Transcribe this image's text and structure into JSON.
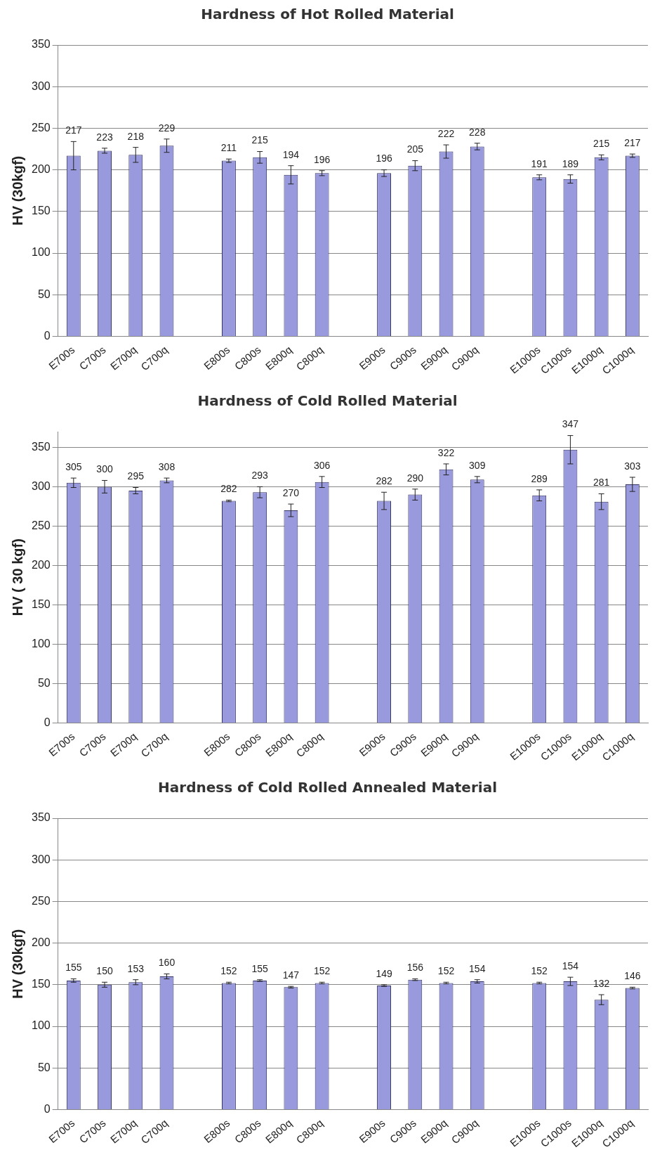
{
  "chart_data": [
    {
      "type": "bar",
      "title": "Hardness of Hot Rolled Material",
      "ylabel": "HV (30kgf)",
      "categories": [
        "E700s",
        "C700s",
        "E700q",
        "C700q",
        null,
        "E800s",
        "C800s",
        "E800q",
        "C800q",
        null,
        "E900s",
        "C900s",
        "E900q",
        "C900q",
        null,
        "E1000s",
        "C1000s",
        "E1000q",
        "C1000q"
      ],
      "series": [
        {
          "color": "#9999dd",
          "values": [
            217,
            223,
            218,
            229,
            null,
            211,
            215,
            194,
            196,
            null,
            196,
            205,
            222,
            228,
            null,
            191,
            189,
            215,
            217
          ],
          "errors": [
            17,
            3,
            9,
            8,
            null,
            2,
            7,
            11,
            3,
            null,
            4,
            6,
            8,
            4,
            null,
            3,
            5,
            3,
            2
          ]
        }
      ],
      "ylim": [
        0,
        350
      ],
      "yticks": [
        0,
        50,
        100,
        150,
        200,
        250,
        300,
        350
      ],
      "grid": "y",
      "data_labels": true
    },
    {
      "type": "bar",
      "title": "Hardness of Cold Rolled Material",
      "ylabel": "HV ( 30 kgf)",
      "categories": [
        "E700s",
        "C700s",
        "E700q",
        "C700q",
        null,
        "E800s",
        "C800s",
        "E800q",
        "C800q",
        null,
        "E900s",
        "C900s",
        "E900q",
        "C900q",
        null,
        "E1000s",
        "C1000s",
        "E1000q",
        "C1000q"
      ],
      "series": [
        {
          "color": "#9999dd",
          "values": [
            305,
            300,
            295,
            308,
            null,
            282,
            293,
            270,
            306,
            null,
            282,
            290,
            322,
            309,
            null,
            289,
            347,
            281,
            303
          ],
          "errors": [
            6,
            8,
            4,
            3,
            null,
            1,
            7,
            8,
            7,
            null,
            11,
            7,
            7,
            4,
            null,
            7,
            18,
            10,
            9
          ]
        }
      ],
      "ylim": [
        0,
        370
      ],
      "yticks": [
        0,
        50,
        100,
        150,
        200,
        250,
        300,
        350
      ],
      "grid": "y",
      "data_labels": true
    },
    {
      "type": "bar",
      "title": "Hardness of Cold Rolled Annealed Material",
      "ylabel": "HV (30kgf)",
      "categories": [
        "E700s",
        "C700s",
        "E700q",
        "C700q",
        null,
        "E800s",
        "C800s",
        "E800q",
        "C800q",
        null,
        "E900s",
        "C900s",
        "E900q",
        "C900q",
        null,
        "E1000s",
        "C1000s",
        "E1000q",
        "C1000q"
      ],
      "series": [
        {
          "color": "#9999dd",
          "values": [
            155,
            150,
            153,
            160,
            null,
            152,
            155,
            147,
            152,
            null,
            149,
            156,
            152,
            154,
            null,
            152,
            154,
            132,
            146
          ],
          "errors": [
            2,
            3,
            3,
            3,
            null,
            1,
            1,
            1,
            1,
            null,
            1,
            1,
            1,
            2,
            null,
            1,
            5,
            6,
            1
          ]
        }
      ],
      "ylim": [
        0,
        350
      ],
      "yticks": [
        0,
        50,
        100,
        150,
        200,
        250,
        300,
        350
      ],
      "grid": "y",
      "data_labels": true
    }
  ]
}
